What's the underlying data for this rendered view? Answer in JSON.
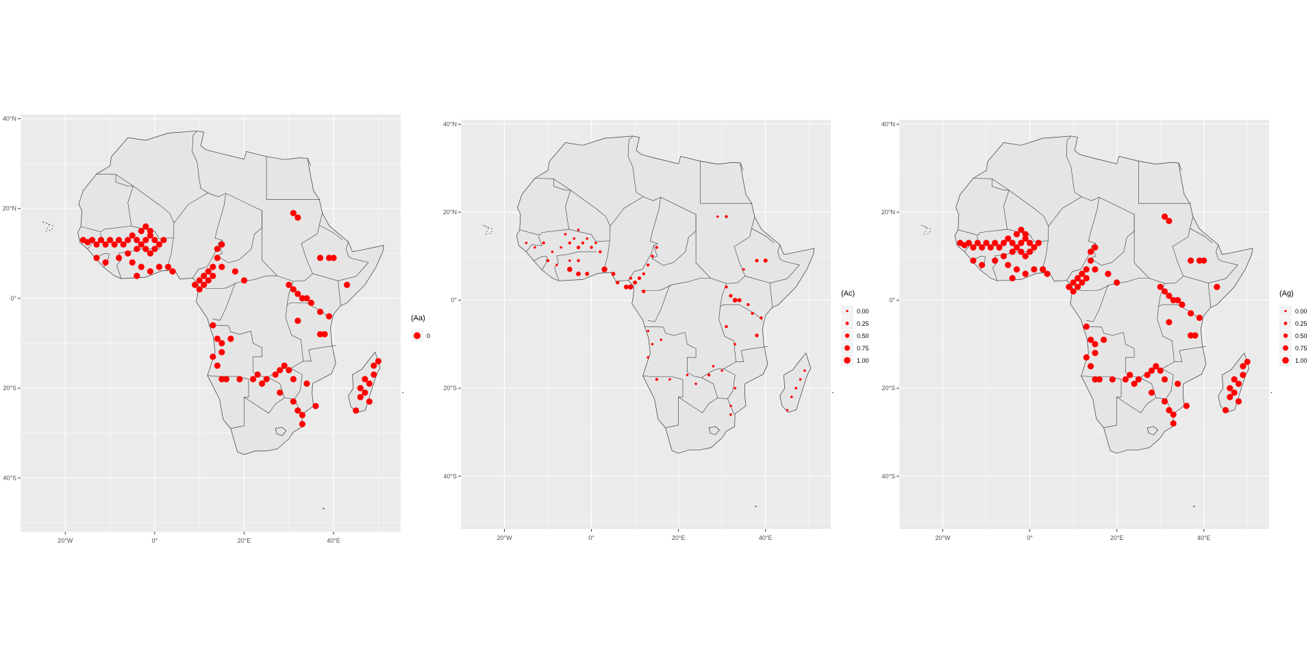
{
  "colors": {
    "panel_bg": "#ebebeb",
    "grid": "#ffffff",
    "land": "#e5e5e5",
    "border": "#333333",
    "point": "#ff0000",
    "tick_text": "#4d4d4d"
  },
  "axes": {
    "x_ticks": [
      {
        "value": -20,
        "label": "20°W"
      },
      {
        "value": 0,
        "label": "0°"
      },
      {
        "value": 20,
        "label": "20°E"
      },
      {
        "value": 40,
        "label": "40°E"
      }
    ],
    "y_ticks": [
      {
        "value": 40,
        "label": "40°N"
      },
      {
        "value": 20,
        "label": "20°N"
      },
      {
        "value": 0,
        "label": "0°"
      },
      {
        "value": -20,
        "label": "20°S"
      },
      {
        "value": -40,
        "label": "40°S"
      }
    ],
    "xlim": [
      -30,
      55
    ],
    "ylim": [
      -52,
      41
    ]
  },
  "maps": [
    {
      "legend_title": "(Aa)",
      "legend_items": [
        {
          "label": "0",
          "size": 1.0
        }
      ],
      "points": [
        [
          -16,
          13,
          0.9
        ],
        [
          -15,
          12.5,
          0.9
        ],
        [
          -14,
          13,
          0.9
        ],
        [
          -13,
          12,
          0.9
        ],
        [
          -12,
          13,
          0.9
        ],
        [
          -11,
          12,
          0.9
        ],
        [
          -10,
          13,
          0.9
        ],
        [
          -9,
          12,
          0.9
        ],
        [
          -8,
          13,
          0.9
        ],
        [
          -7,
          12,
          0.9
        ],
        [
          -6,
          13,
          0.9
        ],
        [
          -5,
          14,
          0.9
        ],
        [
          -4,
          13,
          0.9
        ],
        [
          -3,
          12,
          0.9
        ],
        [
          -2,
          13,
          0.9
        ],
        [
          -1,
          14,
          0.9
        ],
        [
          0,
          13,
          0.9
        ],
        [
          1,
          12,
          0.9
        ],
        [
          2,
          13,
          0.9
        ],
        [
          -3,
          15,
          0.9
        ],
        [
          -2,
          16,
          0.9
        ],
        [
          -1,
          15,
          0.9
        ],
        [
          0,
          11,
          0.9
        ],
        [
          -1,
          10,
          0.9
        ],
        [
          -2,
          11,
          0.9
        ],
        [
          -4,
          11,
          0.9
        ],
        [
          -6,
          10,
          0.9
        ],
        [
          -8,
          9,
          0.9
        ],
        [
          -11,
          8,
          0.9
        ],
        [
          -13,
          9,
          0.9
        ],
        [
          -5,
          8,
          0.9
        ],
        [
          -3,
          7,
          0.9
        ],
        [
          -1,
          6,
          0.9
        ],
        [
          1,
          7,
          0.9
        ],
        [
          3,
          7,
          0.9
        ],
        [
          -4,
          5,
          0.9
        ],
        [
          4,
          6,
          0.9
        ],
        [
          9,
          3,
          0.9
        ],
        [
          10,
          4,
          0.9
        ],
        [
          11,
          5,
          0.9
        ],
        [
          12,
          6,
          0.9
        ],
        [
          13,
          7,
          0.9
        ],
        [
          14,
          9,
          0.9
        ],
        [
          14,
          11,
          0.9
        ],
        [
          15,
          12,
          0.9
        ],
        [
          10,
          2,
          0.9
        ],
        [
          11,
          3,
          0.9
        ],
        [
          12,
          4,
          0.9
        ],
        [
          13,
          5,
          0.9
        ],
        [
          15,
          7,
          0.9
        ],
        [
          18,
          6,
          0.9
        ],
        [
          20,
          4,
          0.9
        ],
        [
          31,
          19,
          0.9
        ],
        [
          32,
          18,
          0.9
        ],
        [
          37,
          9,
          0.9
        ],
        [
          39,
          9,
          0.9
        ],
        [
          40,
          9,
          0.9
        ],
        [
          43,
          3,
          0.9
        ],
        [
          30,
          3,
          0.9
        ],
        [
          31,
          2,
          0.9
        ],
        [
          32,
          1,
          0.9
        ],
        [
          33,
          0,
          0.9
        ],
        [
          34,
          0,
          0.9
        ],
        [
          35,
          -1,
          0.9
        ],
        [
          37,
          -3,
          0.9
        ],
        [
          39,
          -4,
          0.9
        ],
        [
          37,
          -8,
          0.9
        ],
        [
          38,
          -8,
          0.9
        ],
        [
          32,
          -5,
          0.9
        ],
        [
          13,
          -6,
          0.9
        ],
        [
          14,
          -9,
          0.9
        ],
        [
          15,
          -10,
          0.9
        ],
        [
          17,
          -9,
          0.9
        ],
        [
          13,
          -13,
          0.9
        ],
        [
          15,
          -12,
          0.9
        ],
        [
          14,
          -15,
          0.9
        ],
        [
          15,
          -18,
          0.9
        ],
        [
          16,
          -18,
          0.9
        ],
        [
          19,
          -18,
          0.9
        ],
        [
          22,
          -18,
          0.9
        ],
        [
          23,
          -17,
          0.9
        ],
        [
          24,
          -19,
          0.9
        ],
        [
          25,
          -18,
          0.9
        ],
        [
          27,
          -17,
          0.9
        ],
        [
          28,
          -16,
          0.9
        ],
        [
          29,
          -15,
          0.9
        ],
        [
          30,
          -16,
          0.9
        ],
        [
          31,
          -18,
          0.9
        ],
        [
          28,
          -21,
          0.9
        ],
        [
          31,
          -23,
          0.9
        ],
        [
          32,
          -25,
          0.9
        ],
        [
          33,
          -26,
          0.9
        ],
        [
          33,
          -28,
          0.9
        ],
        [
          36,
          -24,
          0.9
        ],
        [
          34,
          -19,
          0.9
        ],
        [
          45,
          -25,
          0.9
        ],
        [
          46,
          -22,
          0.9
        ],
        [
          47,
          -21,
          0.9
        ],
        [
          48,
          -19,
          0.9
        ],
        [
          49,
          -17,
          0.9
        ],
        [
          49,
          -15,
          0.9
        ],
        [
          50,
          -14,
          0.9
        ],
        [
          47,
          -18,
          0.9
        ],
        [
          46,
          -20,
          0.9
        ],
        [
          48,
          -23,
          0.9
        ]
      ]
    },
    {
      "legend_title": "(Ac)",
      "legend_items": [
        {
          "label": "0.00",
          "size": 0.15
        },
        {
          "label": "0.25",
          "size": 0.35
        },
        {
          "label": "0.50",
          "size": 0.55
        },
        {
          "label": "0.75",
          "size": 0.75
        },
        {
          "label": "1.00",
          "size": 0.95
        }
      ],
      "points": [
        [
          -15,
          13,
          0.2
        ],
        [
          -13,
          12,
          0.2
        ],
        [
          -11,
          13,
          0.3
        ],
        [
          -9,
          11,
          0.2
        ],
        [
          -7,
          12,
          0.2
        ],
        [
          -5,
          13,
          0.3
        ],
        [
          -4,
          14,
          0.2
        ],
        [
          -3,
          12,
          0.4
        ],
        [
          -2,
          13,
          0.3
        ],
        [
          -1,
          14,
          0.2
        ],
        [
          0,
          12,
          0.3
        ],
        [
          1,
          13,
          0.2
        ],
        [
          2,
          11,
          0.3
        ],
        [
          -6,
          15,
          0.2
        ],
        [
          -3,
          16,
          0.2
        ],
        [
          -10,
          9,
          0.3
        ],
        [
          -8,
          8,
          0.2
        ],
        [
          -5,
          9,
          0.2
        ],
        [
          -3,
          9,
          0.3
        ],
        [
          -5,
          7,
          0.7
        ],
        [
          -3,
          6,
          0.6
        ],
        [
          -1,
          6,
          0.5
        ],
        [
          3,
          7,
          0.8
        ],
        [
          5,
          6,
          0.5
        ],
        [
          6,
          4,
          0.4
        ],
        [
          8,
          3,
          0.6
        ],
        [
          9,
          3,
          0.7
        ],
        [
          10,
          4,
          0.5
        ],
        [
          11,
          5,
          0.4
        ],
        [
          12,
          6,
          0.3
        ],
        [
          13,
          8,
          0.3
        ],
        [
          14,
          10,
          0.3
        ],
        [
          15,
          12,
          0.3
        ],
        [
          9,
          5,
          0.3
        ],
        [
          12,
          2,
          0.4
        ],
        [
          31,
          19,
          0.3
        ],
        [
          29,
          19,
          0.2
        ],
        [
          38,
          9,
          0.4
        ],
        [
          40,
          9,
          0.5
        ],
        [
          35,
          7,
          0.2
        ],
        [
          31,
          3,
          0.3
        ],
        [
          32,
          1,
          0.4
        ],
        [
          33,
          0,
          0.6
        ],
        [
          34,
          0,
          0.5
        ],
        [
          36,
          -1,
          0.3
        ],
        [
          37,
          -3,
          0.3
        ],
        [
          38,
          -8,
          0.4
        ],
        [
          39,
          -4,
          0.3
        ],
        [
          31,
          -6,
          0.3
        ],
        [
          33,
          -10,
          0.2
        ],
        [
          13,
          -7,
          0.2
        ],
        [
          14,
          -10,
          0.2
        ],
        [
          16,
          -9,
          0.2
        ],
        [
          13,
          -13,
          0.2
        ],
        [
          15,
          -18,
          0.3
        ],
        [
          18,
          -18,
          0.2
        ],
        [
          22,
          -17,
          0.2
        ],
        [
          24,
          -19,
          0.2
        ],
        [
          27,
          -17,
          0.3
        ],
        [
          28,
          -15,
          0.2
        ],
        [
          30,
          -16,
          0.2
        ],
        [
          33,
          -20,
          0.2
        ],
        [
          32,
          -24,
          0.2
        ],
        [
          32,
          -26,
          0.2
        ],
        [
          46,
          -22,
          0.2
        ],
        [
          47,
          -20,
          0.2
        ],
        [
          48,
          -18,
          0.2
        ],
        [
          49,
          -16,
          0.2
        ],
        [
          45,
          -25,
          0.2
        ]
      ]
    },
    {
      "legend_title": "(Ag)",
      "legend_items": [
        {
          "label": "0.00",
          "size": 0.15
        },
        {
          "label": "0.25",
          "size": 0.35
        },
        {
          "label": "0.50",
          "size": 0.55
        },
        {
          "label": "0.75",
          "size": 0.75
        },
        {
          "label": "1.00",
          "size": 0.95
        }
      ],
      "points": [
        [
          -16,
          13,
          0.9
        ],
        [
          -15,
          12.5,
          0.9
        ],
        [
          -14,
          13,
          0.9
        ],
        [
          -13,
          12,
          0.9
        ],
        [
          -12,
          13,
          0.9
        ],
        [
          -11,
          12,
          0.9
        ],
        [
          -10,
          13,
          0.9
        ],
        [
          -9,
          12,
          0.9
        ],
        [
          -8,
          13,
          0.9
        ],
        [
          -7,
          12,
          0.9
        ],
        [
          -6,
          13,
          0.9
        ],
        [
          -5,
          14,
          0.9
        ],
        [
          -4,
          13,
          0.9
        ],
        [
          -3,
          12,
          0.9
        ],
        [
          -2,
          13,
          0.9
        ],
        [
          -1,
          14,
          0.9
        ],
        [
          0,
          13,
          0.9
        ],
        [
          1,
          12,
          0.9
        ],
        [
          2,
          13,
          0.9
        ],
        [
          -3,
          15,
          0.9
        ],
        [
          -2,
          16,
          0.9
        ],
        [
          -1,
          15,
          0.9
        ],
        [
          0,
          11,
          0.9
        ],
        [
          -1,
          10,
          0.9
        ],
        [
          -2,
          11,
          0.9
        ],
        [
          -4,
          11,
          0.9
        ],
        [
          -6,
          10,
          0.9
        ],
        [
          -8,
          9,
          0.9
        ],
        [
          -11,
          8,
          0.9
        ],
        [
          -13,
          9,
          0.9
        ],
        [
          -5,
          8,
          0.9
        ],
        [
          -3,
          7,
          0.9
        ],
        [
          -1,
          6,
          0.9
        ],
        [
          1,
          7,
          0.9
        ],
        [
          3,
          7,
          0.9
        ],
        [
          -4,
          5,
          0.9
        ],
        [
          4,
          6,
          0.9
        ],
        [
          9,
          3,
          0.9
        ],
        [
          10,
          4,
          0.9
        ],
        [
          11,
          5,
          0.9
        ],
        [
          12,
          6,
          0.9
        ],
        [
          13,
          7,
          0.9
        ],
        [
          14,
          9,
          0.9
        ],
        [
          14,
          11,
          0.9
        ],
        [
          15,
          12,
          0.9
        ],
        [
          10,
          2,
          0.9
        ],
        [
          11,
          3,
          0.9
        ],
        [
          12,
          4,
          0.9
        ],
        [
          13,
          5,
          0.9
        ],
        [
          15,
          7,
          0.9
        ],
        [
          18,
          6,
          0.9
        ],
        [
          20,
          4,
          0.9
        ],
        [
          31,
          19,
          0.9
        ],
        [
          32,
          18,
          0.9
        ],
        [
          37,
          9,
          0.9
        ],
        [
          39,
          9,
          0.9
        ],
        [
          40,
          9,
          0.9
        ],
        [
          43,
          3,
          0.9
        ],
        [
          30,
          3,
          0.9
        ],
        [
          31,
          2,
          0.9
        ],
        [
          32,
          1,
          0.9
        ],
        [
          33,
          0,
          0.9
        ],
        [
          34,
          0,
          0.9
        ],
        [
          35,
          -1,
          0.9
        ],
        [
          37,
          -3,
          0.9
        ],
        [
          39,
          -4,
          0.9
        ],
        [
          37,
          -8,
          0.9
        ],
        [
          38,
          -8,
          0.9
        ],
        [
          32,
          -5,
          0.9
        ],
        [
          13,
          -6,
          0.9
        ],
        [
          14,
          -9,
          0.9
        ],
        [
          15,
          -10,
          0.9
        ],
        [
          17,
          -9,
          0.9
        ],
        [
          13,
          -13,
          0.9
        ],
        [
          15,
          -12,
          0.9
        ],
        [
          14,
          -15,
          0.9
        ],
        [
          15,
          -18,
          0.9
        ],
        [
          16,
          -18,
          0.9
        ],
        [
          19,
          -18,
          0.9
        ],
        [
          22,
          -18,
          0.9
        ],
        [
          23,
          -17,
          0.9
        ],
        [
          24,
          -19,
          0.9
        ],
        [
          25,
          -18,
          0.9
        ],
        [
          27,
          -17,
          0.9
        ],
        [
          28,
          -16,
          0.9
        ],
        [
          29,
          -15,
          0.9
        ],
        [
          30,
          -16,
          0.9
        ],
        [
          31,
          -18,
          0.9
        ],
        [
          28,
          -21,
          0.9
        ],
        [
          31,
          -23,
          0.9
        ],
        [
          32,
          -25,
          0.9
        ],
        [
          33,
          -26,
          0.9
        ],
        [
          33,
          -28,
          0.9
        ],
        [
          36,
          -24,
          0.9
        ],
        [
          34,
          -19,
          0.9
        ],
        [
          45,
          -25,
          0.9
        ],
        [
          46,
          -22,
          0.9
        ],
        [
          47,
          -21,
          0.9
        ],
        [
          48,
          -19,
          0.9
        ],
        [
          49,
          -17,
          0.9
        ],
        [
          49,
          -15,
          0.9
        ],
        [
          50,
          -14,
          0.9
        ],
        [
          47,
          -18,
          0.9
        ],
        [
          46,
          -20,
          0.9
        ],
        [
          48,
          -23,
          0.9
        ]
      ]
    }
  ]
}
